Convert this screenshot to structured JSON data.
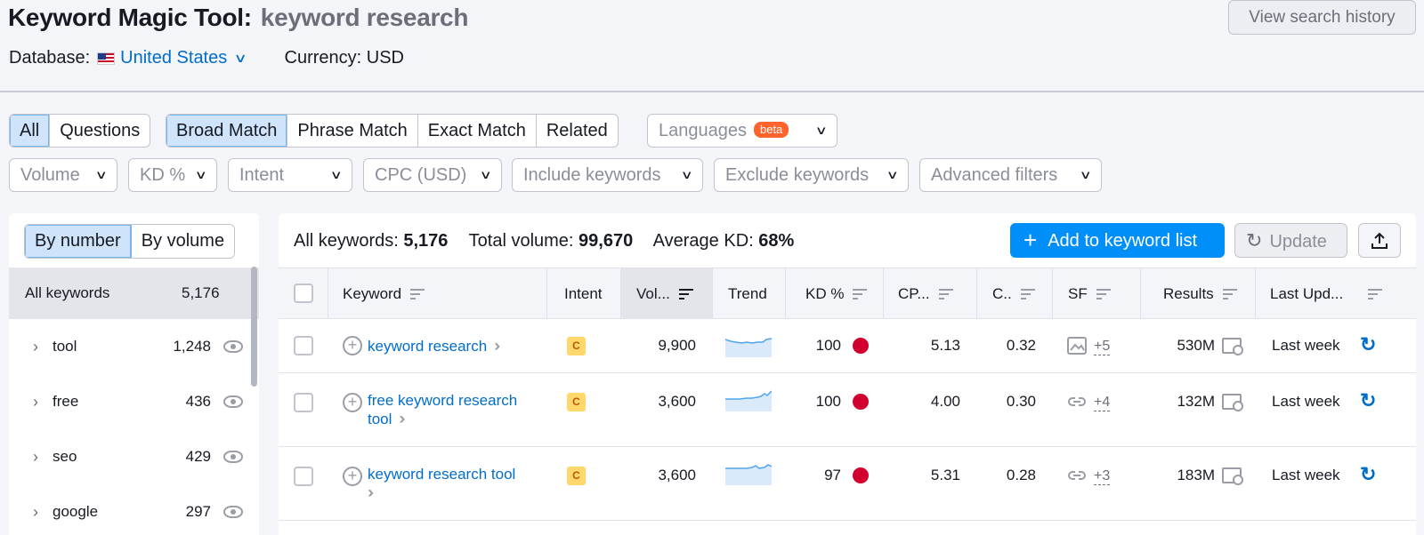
{
  "header": {
    "title": "Keyword Magic Tool:",
    "query": "keyword research",
    "history_button": "View search history",
    "database_label": "Database:",
    "database_value": "United States",
    "currency": "Currency: USD"
  },
  "filters": {
    "scope_tabs": [
      "All",
      "Questions"
    ],
    "match_tabs": [
      "Broad Match",
      "Phrase Match",
      "Exact Match",
      "Related"
    ],
    "languages": "Languages",
    "beta": "beta",
    "dropdowns": [
      "Volume",
      "KD %",
      "Intent",
      "CPC (USD)",
      "Include keywords",
      "Exclude keywords",
      "Advanced filters"
    ]
  },
  "groups": {
    "toggle": [
      "By number",
      "By volume"
    ],
    "all_label": "All keywords",
    "all_count": "5,176",
    "items": [
      {
        "name": "tool",
        "count": "1,248"
      },
      {
        "name": "free",
        "count": "436"
      },
      {
        "name": "seo",
        "count": "429"
      },
      {
        "name": "google",
        "count": "297"
      }
    ]
  },
  "summary": {
    "all_keywords_label": "All keywords:",
    "all_keywords": "5,176",
    "total_volume_label": "Total volume:",
    "total_volume": "99,670",
    "avg_kd_label": "Average KD:",
    "avg_kd": "68%"
  },
  "actions": {
    "add": "Add to keyword list",
    "update": "Update"
  },
  "columns": [
    "Keyword",
    "Intent",
    "Vol...",
    "Trend",
    "KD %",
    "CP...",
    "C..",
    "SF",
    "Results",
    "Last Upd..."
  ],
  "rows": [
    {
      "keyword": "keyword research",
      "keyword2": "",
      "intent": "C",
      "volume": "9,900",
      "kd": "100",
      "cpc": "5.13",
      "com": "0.32",
      "sf": "+5",
      "results": "530M",
      "updated": "Last week"
    },
    {
      "keyword": "free keyword research",
      "keyword2": "tool",
      "intent": "C",
      "volume": "3,600",
      "kd": "100",
      "cpc": "4.00",
      "com": "0.30",
      "sf": "+4",
      "results": "132M",
      "updated": "Last week"
    },
    {
      "keyword": "keyword research tool",
      "keyword2": "",
      "intent": "C",
      "volume": "3,600",
      "kd": "97",
      "cpc": "5.31",
      "com": "0.28",
      "sf": "+3",
      "results": "183M",
      "updated": "Last week"
    }
  ],
  "colors": {
    "accent": "#008ff8",
    "link": "#006dca",
    "kd_hard": "#d1002f",
    "intent_commercial": "#ffd76b"
  }
}
